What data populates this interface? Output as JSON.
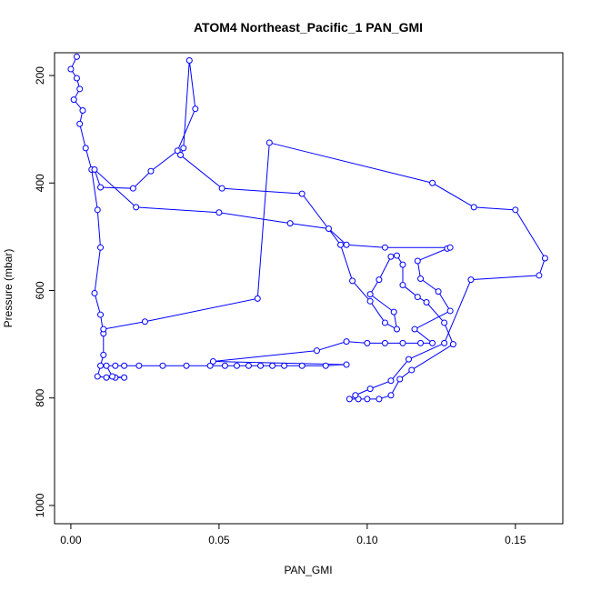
{
  "chart_data": {
    "type": "line",
    "title": "ATOM4 Northeast_Pacific_1 PAN_GMI",
    "x_label": "PAN_GMI",
    "y_label": "Pressure (mbar)",
    "xlim": [
      -0.0055,
      0.166
    ],
    "ylim": [
      1034,
      157.6
    ],
    "xticks": [
      {
        "value": 0,
        "label": "0.00"
      },
      {
        "value": 0.05,
        "label": "0.05"
      },
      {
        "value": 0.1,
        "label": "0.10"
      },
      {
        "value": 0.15,
        "label": "0.15"
      }
    ],
    "yticks": [
      200,
      400,
      600,
      800,
      1000
    ],
    "series": [
      {
        "color": "#0000ff",
        "x": [
          0.002,
          0.0,
          0.002,
          0.003,
          0.001,
          0.004,
          0.003,
          0.005,
          0.007,
          0.009,
          0.01,
          0.008,
          0.01,
          0.011,
          0.011,
          0.01,
          0.009,
          0.012,
          0.015,
          0.018,
          0.014,
          0.012,
          0.015,
          0.018,
          0.023,
          0.031,
          0.039,
          0.047,
          0.052,
          0.056,
          0.06,
          0.064,
          0.068,
          0.072,
          0.078,
          0.086,
          0.093,
          0.048,
          0.083,
          0.093,
          0.1,
          0.106,
          0.112,
          0.118,
          0.122,
          0.116,
          0.128,
          0.124,
          0.118,
          0.117,
          0.127,
          0.128,
          0.106,
          0.093,
          0.087,
          0.074,
          0.05,
          0.022,
          0.008,
          0.01,
          0.021,
          0.027,
          0.036,
          0.042,
          0.04,
          0.038,
          0.037,
          0.051,
          0.078,
          0.091,
          0.095,
          0.101,
          0.106,
          0.11,
          0.109,
          0.101,
          0.104,
          0.108,
          0.11,
          0.112,
          0.112,
          0.117,
          0.12,
          0.126,
          0.129,
          0.115,
          0.111,
          0.108,
          0.104,
          0.1,
          0.097,
          0.094,
          0.096,
          0.101,
          0.108,
          0.114,
          0.126,
          0.135,
          0.158,
          0.16,
          0.15,
          0.136,
          0.122,
          0.067,
          0.063,
          0.025,
          0.011
        ],
        "values": [
          165,
          188,
          205,
          225,
          245,
          265,
          290,
          335,
          375,
          450,
          520,
          605,
          645,
          680,
          720,
          740,
          760,
          762,
          762,
          762,
          760,
          740,
          740,
          740,
          740,
          740,
          740,
          740,
          740,
          740,
          740,
          740,
          740,
          740,
          740,
          740,
          738,
          732,
          712,
          695,
          698,
          698,
          698,
          698,
          698,
          672,
          638,
          602,
          578,
          545,
          522,
          520,
          520,
          515,
          485,
          475,
          455,
          445,
          375,
          408,
          410,
          378,
          340,
          262,
          172,
          335,
          348,
          410,
          420,
          515,
          582,
          620,
          660,
          672,
          640,
          607,
          580,
          537,
          535,
          552,
          590,
          612,
          622,
          660,
          700,
          748,
          765,
          795,
          802,
          802,
          802,
          802,
          795,
          783,
          768,
          728,
          698,
          580,
          572,
          540,
          450,
          445,
          400,
          325,
          615,
          658,
          672
        ]
      }
    ]
  }
}
